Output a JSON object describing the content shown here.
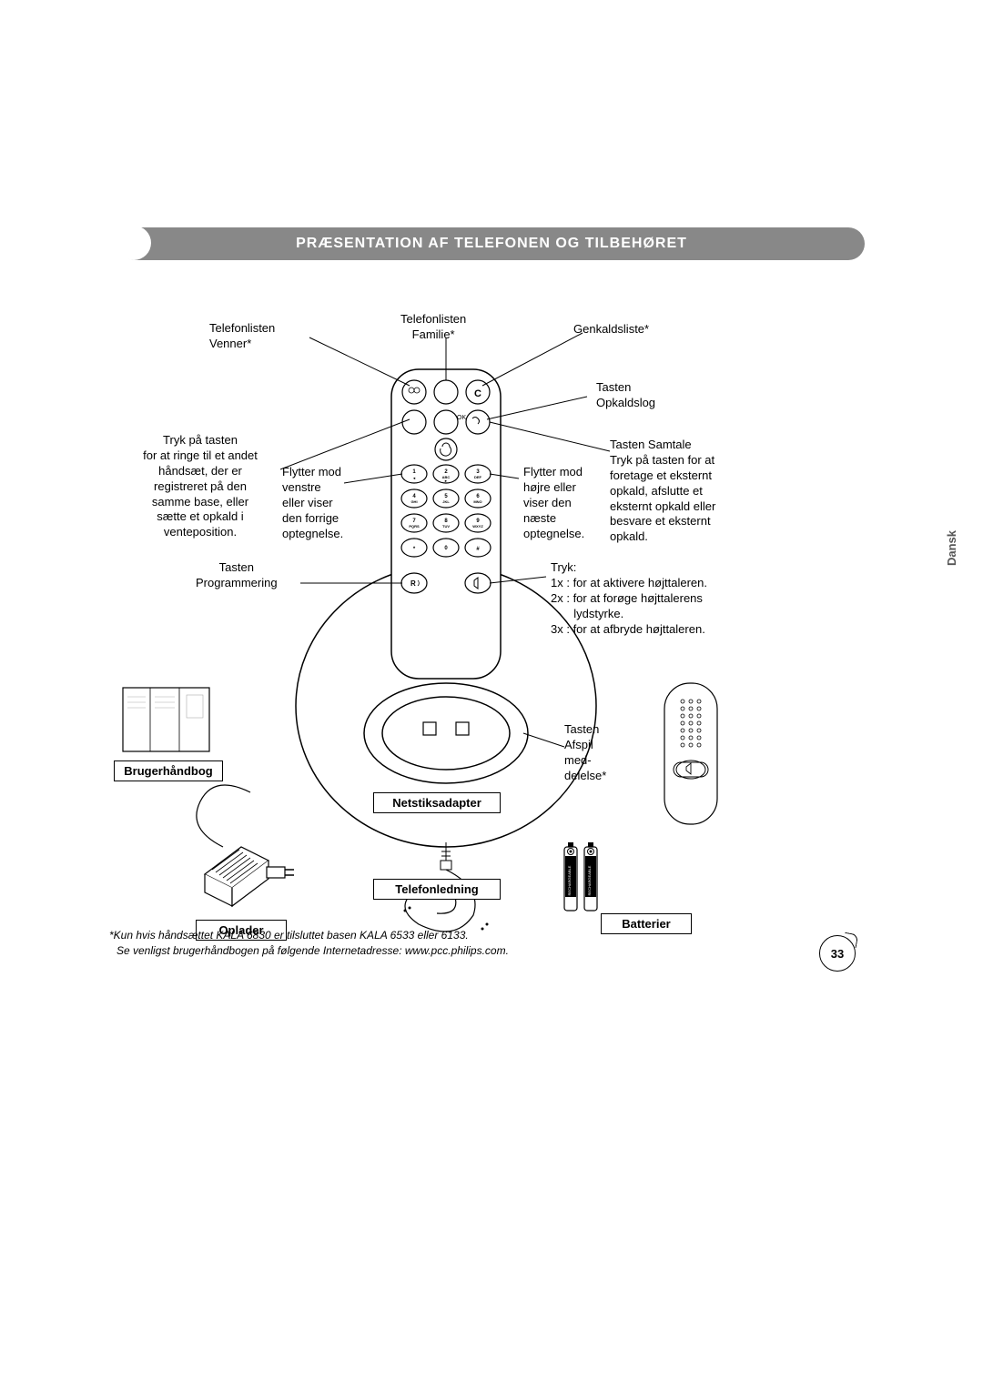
{
  "header": {
    "title": "PRÆSENTATION AF TELEFONEN OG TILBEHØRET"
  },
  "labels": {
    "l1": "Telefonlisten\nVenner*",
    "l2": "Telefonlisten\nFamilie*",
    "l3": "Genkaldsliste*",
    "l4": "Tasten\nOpkaldslog",
    "l5": "Tryk på tasten\nfor at ringe til et andet\nhåndsæt, der er\nregistreret på den\nsamme base, eller\nsætte et opkald i\nventeposition.",
    "l6": "Flytter mod\nvenstre\neller viser\nden forrige\noptegnelse.",
    "l7": "Flytter mod\nhøjre eller\nviser den\nnæste\noptegnelse.",
    "l8": "Tasten Samtale\nTryk på tasten for at\nforetage et eksternt\nopkald, afslutte et\neksternt opkald eller\nbesvare et eksternt\nopkald.",
    "l9": "Tasten\nProgrammering",
    "l10": "Tryk:\n1x : for at aktivere højttaleren.\n2x : for at forøge højttalerens\n       lydstyrke.\n3x : for at afbryde højttaleren.",
    "l11": "Tasten\nAfspil\nmed-\ndelelse*"
  },
  "boxes": {
    "b1": "Brugerhåndbog",
    "b2": "Netstiksadapter",
    "b3": "Telefonledning",
    "b4": "Oplader",
    "b5": "Batterier"
  },
  "side_tab": "Dansk",
  "footnote1": "*Kun hvis håndsættet KALA 6830 er tilsluttet basen KALA 6533 eller 6133.",
  "footnote2": "Se venligst brugerhåndbogen på følgende Internetadresse: www.pcc.philips.com.",
  "page_number": "33",
  "colors": {
    "header_bg": "#888888",
    "header_text": "#ffffff",
    "text": "#000000",
    "line": "#000000",
    "bg": "#ffffff"
  }
}
